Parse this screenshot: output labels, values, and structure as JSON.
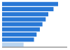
{
  "chart_data": {
    "type": "bar",
    "orientation": "horizontal",
    "categories": [
      null,
      null,
      null,
      null,
      null,
      null,
      null,
      null,
      null
    ],
    "values": [
      86,
      79,
      71,
      67,
      62,
      58,
      53,
      49,
      33
    ],
    "colors": [
      "#2878d6",
      "#2878d6",
      "#2878d6",
      "#2878d6",
      "#2878d6",
      "#2878d6",
      "#2878d6",
      "#2878d6",
      "#b8d4f0"
    ],
    "xlim": [
      0,
      100
    ],
    "tick_labels": false
  }
}
